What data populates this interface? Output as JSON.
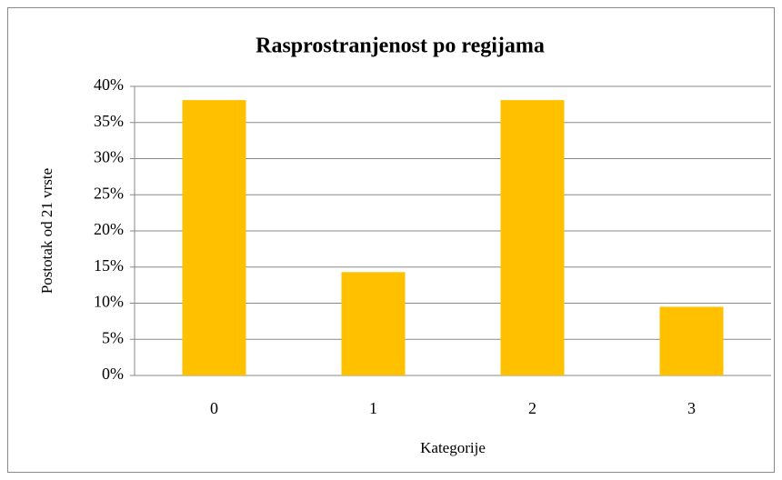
{
  "chart_data": {
    "type": "bar",
    "title": "Rasprostranjenost po regijama",
    "x_label": "Kategorije",
    "y_label": "Postotak od 21 vrste",
    "categories": [
      "0",
      "1",
      "2",
      "3"
    ],
    "values": [
      38.1,
      14.3,
      38.1,
      9.5
    ],
    "color": "#ffc000",
    "ylim": [
      0,
      40
    ],
    "yticks": [
      {
        "value": 0,
        "label": "0%"
      },
      {
        "value": 5,
        "label": "5%"
      },
      {
        "value": 10,
        "label": "10%"
      },
      {
        "value": 15,
        "label": "15%"
      },
      {
        "value": 20,
        "label": "20%"
      },
      {
        "value": 25,
        "label": "25%"
      },
      {
        "value": 30,
        "label": "30%"
      },
      {
        "value": 35,
        "label": "35%"
      },
      {
        "value": 40,
        "label": "40%"
      }
    ],
    "grid": true
  }
}
